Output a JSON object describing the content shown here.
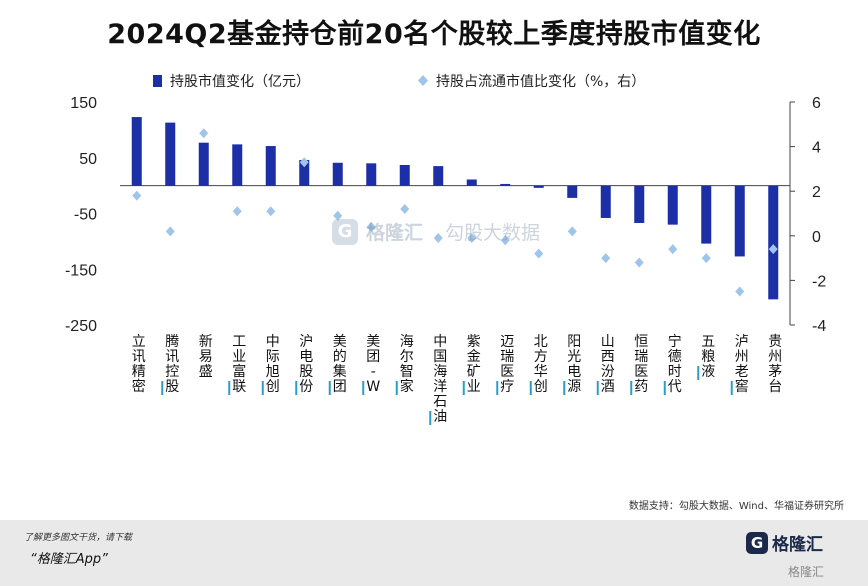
{
  "title": "2024Q2基金持仓前20名个股较上季度持股市值变化",
  "source": "数据支持：勾股大数据、Wind、华福证券研究所",
  "footer": {
    "note": "了解更多图文干货，请下载",
    "app": "“格隆汇App”"
  },
  "brand": {
    "icon": "G",
    "name": "格隆汇",
    "small": "格隆汇"
  },
  "watermark": {
    "name": "格隆汇",
    "partner": "勾股大数据"
  },
  "colors": {
    "bar": "#1c2fa6",
    "point": "#9fc5e8",
    "axis": "#444444",
    "highlight": "#2a9dc9"
  },
  "chart_data": {
    "type": "bar",
    "categories": [
      "立讯精密",
      "腾讯控股",
      "新易盛",
      "工业富联",
      "中际旭创",
      "沪电股份",
      "美的集团",
      "美团-W",
      "海尔智家",
      "中国海洋石油",
      "紫金矿业",
      "迈瑞医疗",
      "北方华创",
      "阳光电源",
      "山西汾酒",
      "恒瑞医药",
      "宁德时代",
      "五粮液",
      "泸州老窖",
      "贵州茅台"
    ],
    "highlight_categories": [
      "腾讯控股",
      "工业富联",
      "中际旭创",
      "沪电股份",
      "美的集团",
      "美团-W",
      "海尔智家",
      "中国海洋石油",
      "紫金矿业",
      "迈瑞医疗",
      "北方华创",
      "阳光电源",
      "山西汾酒",
      "恒瑞医药",
      "宁德时代",
      "五粮液",
      "泸州老窖"
    ],
    "series": [
      {
        "name": "持股市值变化（亿元）",
        "type": "bar",
        "axis": "left",
        "values": [
          123,
          113,
          77,
          74,
          71,
          46,
          41,
          40,
          37,
          35,
          11,
          3,
          -4,
          -22,
          -58,
          -67,
          -70,
          -104,
          -127,
          -204
        ]
      },
      {
        "name": "持股占流通市值比变化（%，右）",
        "type": "scatter",
        "axis": "right",
        "values": [
          1.8,
          0.2,
          4.6,
          1.1,
          1.1,
          3.3,
          0.9,
          0.4,
          1.2,
          -0.1,
          -0.1,
          -0.2,
          -0.8,
          0.2,
          -1.0,
          -1.2,
          -0.6,
          -1.0,
          -2.5,
          -0.6
        ]
      }
    ],
    "y_left": {
      "ylim": [
        -250,
        150
      ],
      "ticks": [
        "150",
        "50",
        "-50",
        "-150",
        "-250"
      ],
      "tick_values": [
        150,
        50,
        -50,
        -150,
        -250
      ]
    },
    "y_right": {
      "ylim": [
        -4,
        6
      ],
      "ticks": [
        "6",
        "4",
        "2",
        "0",
        "-2",
        "-4"
      ],
      "tick_values": [
        6,
        4,
        2,
        0,
        -2,
        -4
      ]
    },
    "grid": false,
    "legend_position": "top"
  }
}
